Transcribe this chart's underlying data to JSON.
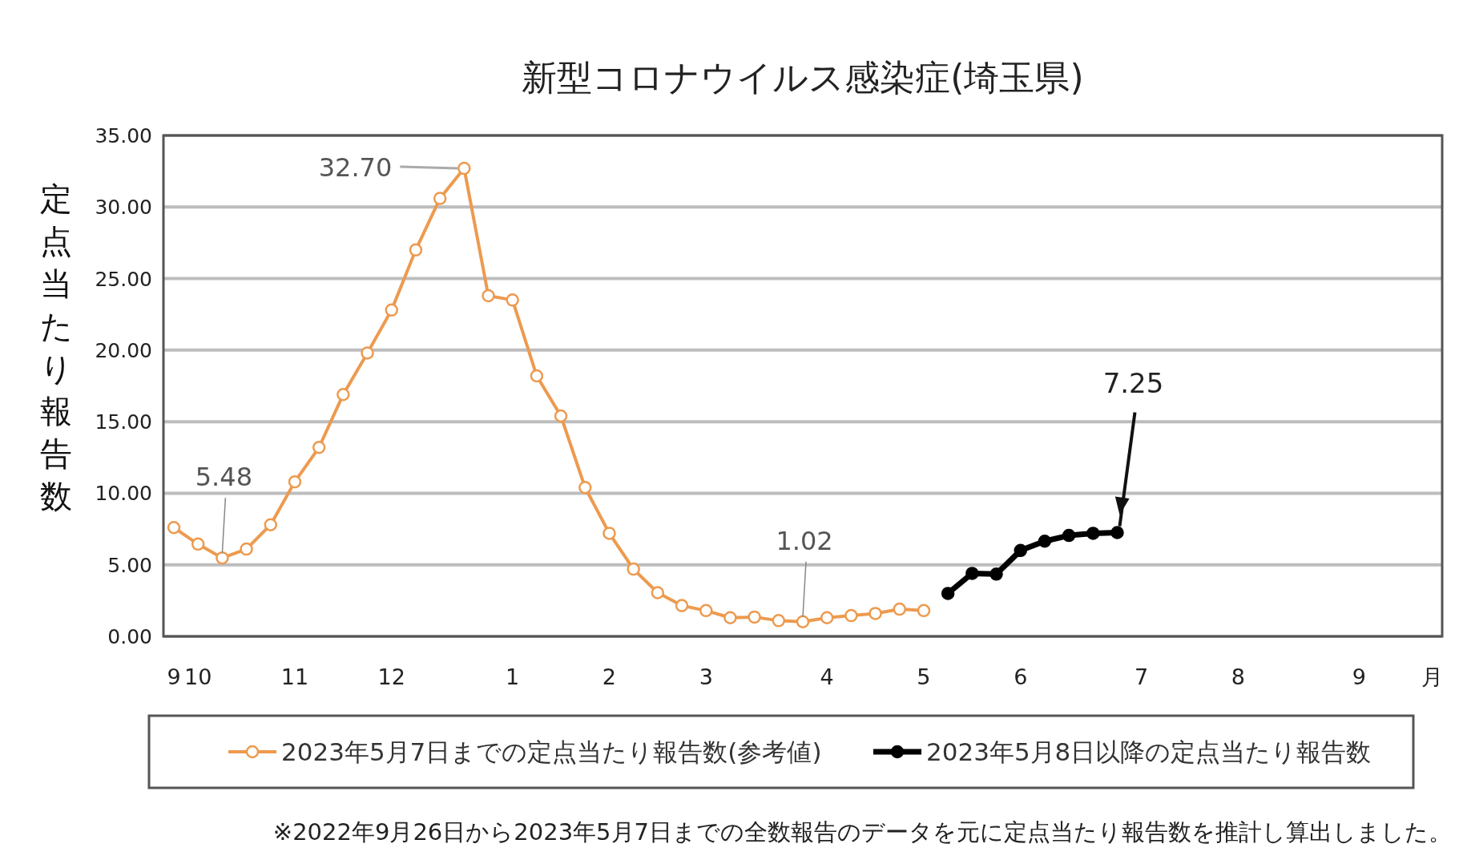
{
  "chart_data": {
    "type": "line",
    "title": "新型コロナウイルス感染症(埼玉県)",
    "ylabel": "定点当たり報告数",
    "categories": [
      "9",
      "10",
      null,
      null,
      null,
      "11",
      null,
      null,
      null,
      "12",
      null,
      null,
      null,
      null,
      "1",
      null,
      null,
      null,
      "2",
      null,
      null,
      null,
      "3",
      null,
      null,
      null,
      null,
      "4",
      null,
      null,
      null,
      "5",
      null,
      null,
      null,
      "6",
      null,
      null,
      null,
      null,
      "7",
      null,
      null,
      null,
      "8",
      null,
      null,
      null,
      null,
      "9",
      null,
      null,
      "月"
    ],
    "series": [
      {
        "name": "2023年5月7日までの定点当たり報告数(参考値)",
        "color": "#ed9a4f",
        "marker": "circle",
        "values": [
          7.6,
          6.45,
          5.48,
          6.1,
          7.8,
          10.8,
          13.2,
          16.9,
          19.8,
          22.8,
          27.0,
          30.6,
          32.7,
          23.8,
          23.5,
          18.2,
          15.4,
          10.4,
          7.2,
          4.7,
          3.05,
          2.15,
          1.8,
          1.3,
          1.35,
          1.1,
          1.02,
          1.3,
          1.45,
          1.6,
          1.9,
          1.8,
          null,
          null,
          null,
          null,
          null,
          null,
          null,
          null,
          null,
          null,
          null,
          null,
          null,
          null,
          null,
          null,
          null,
          null,
          null,
          null,
          null
        ],
        "value_labels": [
          null,
          null,
          "5.48",
          null,
          null,
          null,
          null,
          null,
          null,
          null,
          null,
          null,
          "32.70",
          null,
          null,
          null,
          null,
          null,
          null,
          null,
          null,
          null,
          null,
          null,
          null,
          null,
          "1.02",
          null,
          null,
          null,
          null,
          null,
          null,
          null,
          null,
          null,
          null,
          null,
          null,
          null,
          null,
          null,
          null,
          null,
          null,
          null,
          null,
          null,
          null,
          null,
          null,
          null,
          null
        ]
      },
      {
        "name": "2023年5月8日以降の定点当たり報告数",
        "color": "#000000",
        "marker": "circle",
        "values": [
          null,
          null,
          null,
          null,
          null,
          null,
          null,
          null,
          null,
          null,
          null,
          null,
          null,
          null,
          null,
          null,
          null,
          null,
          null,
          null,
          null,
          null,
          null,
          null,
          null,
          null,
          null,
          null,
          null,
          null,
          null,
          null,
          3.0,
          4.4,
          4.35,
          6.0,
          6.65,
          7.05,
          7.2,
          7.25,
          null,
          null,
          null,
          null,
          null,
          null,
          null,
          null,
          null,
          null,
          null,
          null,
          null
        ],
        "value_labels": [
          null,
          null,
          null,
          null,
          null,
          null,
          null,
          null,
          null,
          null,
          null,
          null,
          null,
          null,
          null,
          null,
          null,
          null,
          null,
          null,
          null,
          null,
          null,
          null,
          null,
          null,
          null,
          null,
          null,
          null,
          null,
          null,
          null,
          null,
          null,
          null,
          null,
          null,
          null,
          "7.25",
          null,
          null,
          null,
          null,
          null,
          null,
          null,
          null,
          null,
          null,
          null,
          null,
          null
        ]
      }
    ],
    "ylim": [
      0,
      35
    ],
    "yticks": [
      {
        "value": 0,
        "label": "0.00"
      },
      {
        "value": 5,
        "label": "5.00"
      },
      {
        "value": 10,
        "label": "10.00"
      },
      {
        "value": 15,
        "label": "15.00"
      },
      {
        "value": 20,
        "label": "20.00"
      },
      {
        "value": 25,
        "label": "25.00"
      },
      {
        "value": 30,
        "label": "30.00"
      },
      {
        "value": 35,
        "label": "35.00"
      }
    ],
    "grid": "y",
    "legend": "bottom",
    "line_style": "solid",
    "annotations": [
      "※2022年9月26日から2023年5月7日までの全数報告のデータを元に定点当たり報告数を推計し算出しました。"
    ]
  }
}
